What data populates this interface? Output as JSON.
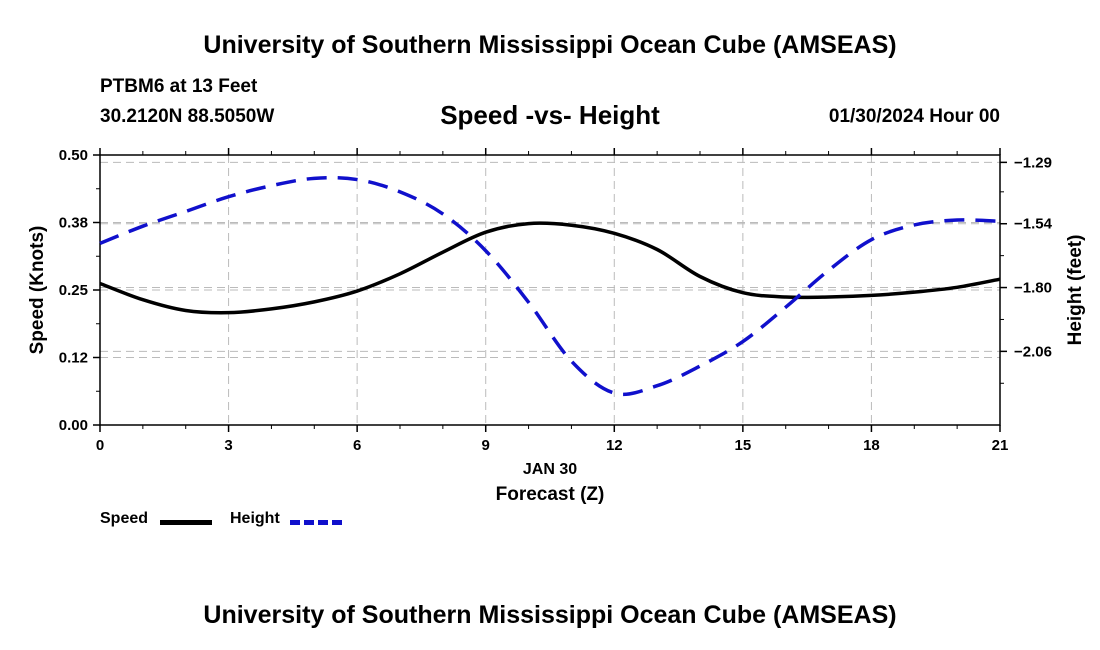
{
  "header": {
    "title": "University of Southern Mississippi Ocean Cube (AMSEAS)",
    "station": "PTBM6 at 13 Feet",
    "coordinates": "30.2120N  88.5050W",
    "forecast_date": "01/30/2024 Hour 00"
  },
  "footer": {
    "title": "University of Southern Mississippi Ocean Cube (AMSEAS)"
  },
  "legend": {
    "speed_label": "Speed",
    "height_label": "Height"
  },
  "colors": {
    "speed": "#000000",
    "height": "#1010cc",
    "grid": "#bbbbbb"
  },
  "chart_data": {
    "type": "line",
    "title": "Speed -vs- Height",
    "xlabel": "Forecast (Z)",
    "xsublabel": "JAN 30",
    "ylabel": "Speed (Knots)",
    "y2label": "Height (feet)",
    "xlim": [
      0,
      21
    ],
    "ylim": [
      0,
      0.5
    ],
    "y2lim": [
      -2.36,
      -1.26
    ],
    "x_ticks": [
      0,
      3,
      6,
      9,
      12,
      15,
      18,
      21
    ],
    "x_tick_labels": [
      "0",
      "3",
      "6",
      "9",
      "12",
      "15",
      "18",
      "21"
    ],
    "y_ticks": [
      0.0,
      0.125,
      0.25,
      0.375,
      0.5
    ],
    "y_tick_labels": [
      "0.00",
      "0.12",
      "0.25",
      "0.38",
      "0.50"
    ],
    "y2_ticks": [
      -2.06,
      -1.8,
      -1.54,
      -1.29
    ],
    "y2_tick_labels": [
      "−2.06",
      "−1.80",
      "−1.54",
      "−1.29"
    ],
    "grid": true,
    "series": [
      {
        "name": "Speed",
        "axis": "left",
        "style": "solid",
        "x": [
          0,
          1,
          2,
          3,
          4,
          5,
          6,
          7,
          8,
          9,
          10,
          11,
          12,
          13,
          14,
          15,
          16,
          17,
          18,
          19,
          20,
          21
        ],
        "values": [
          0.262,
          0.232,
          0.212,
          0.208,
          0.215,
          0.228,
          0.248,
          0.28,
          0.32,
          0.357,
          0.373,
          0.37,
          0.355,
          0.325,
          0.275,
          0.245,
          0.237,
          0.237,
          0.24,
          0.246,
          0.255,
          0.27
        ]
      },
      {
        "name": "Height",
        "axis": "right",
        "style": "dashed",
        "x": [
          0,
          1,
          2,
          3,
          4,
          5,
          6,
          7,
          8,
          9,
          10,
          11,
          12,
          13,
          14,
          15,
          16,
          17,
          18,
          19,
          20,
          21
        ],
        "values": [
          -1.62,
          -1.55,
          -1.49,
          -1.43,
          -1.385,
          -1.355,
          -1.36,
          -1.41,
          -1.5,
          -1.65,
          -1.86,
          -2.1,
          -2.23,
          -2.2,
          -2.12,
          -2.02,
          -1.88,
          -1.73,
          -1.605,
          -1.545,
          -1.525,
          -1.53
        ]
      }
    ]
  }
}
